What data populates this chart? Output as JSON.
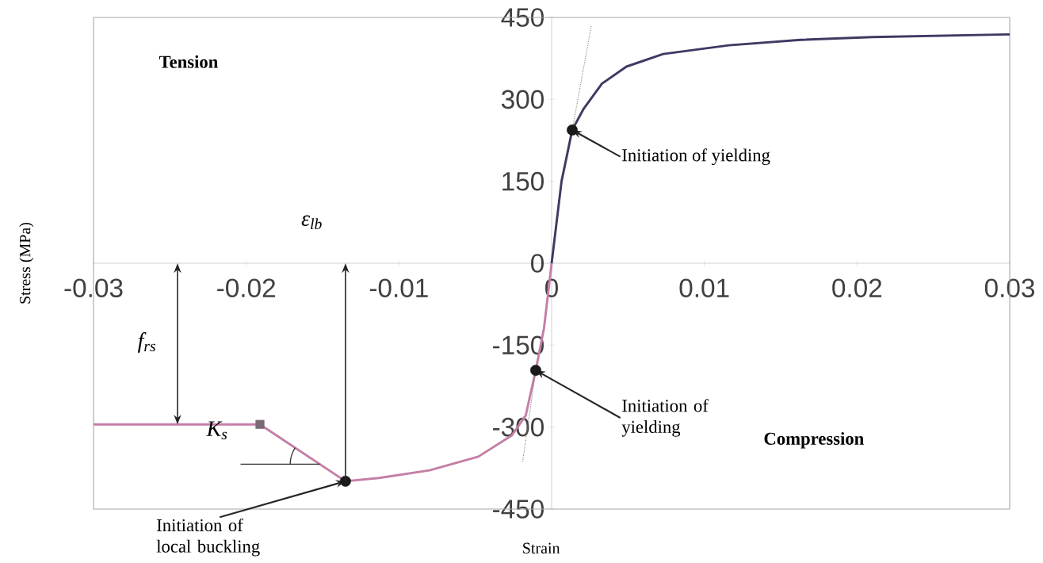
{
  "chart_data": {
    "type": "line",
    "xlabel": "Strain",
    "ylabel": "Stress (MPa)",
    "xlim": [
      -0.03,
      0.03
    ],
    "ylim": [
      -450,
      450
    ],
    "xticks": [
      -0.03,
      -0.02,
      -0.01,
      0,
      0.01,
      0.02,
      0.03
    ],
    "yticks": [
      -450,
      -300,
      -150,
      0,
      150,
      300,
      450
    ],
    "grid": false,
    "series": [
      {
        "color": "#3d3b63",
        "line_style": "solid",
        "marker": "none",
        "x": [
          0,
          0.00065,
          0.00135,
          0.0021,
          0.0033,
          0.0049,
          0.0073,
          0.0116,
          0.0163,
          0.021,
          0.03
        ],
        "values": [
          0,
          150,
          244,
          283,
          329,
          360,
          383,
          399,
          409,
          414,
          419
        ]
      },
      {
        "color": "#c47fa6",
        "line_style": "solid",
        "marker": "none",
        "x": [
          0,
          -0.0005,
          -0.00104,
          -0.0017,
          -0.0026,
          -0.0048,
          -0.008,
          -0.0113,
          -0.0135,
          -0.0191,
          -0.03
        ],
        "values": [
          0,
          -119,
          -196,
          -279,
          -315,
          -354,
          -379,
          -393,
          -399,
          -295,
          -295
        ]
      },
      {
        "type": "line",
        "color": "#808080",
        "line_style": "dotted",
        "marker": "none",
        "x": [
          0.00135,
          0.0026
        ],
        "values": [
          244,
          435
        ]
      },
      {
        "type": "line",
        "color": "#808080",
        "line_style": "dotted",
        "marker": "none",
        "x": [
          -0.00104,
          -0.0019
        ],
        "values": [
          -196,
          -364
        ]
      },
      {
        "type": "scatter",
        "color": "#1a1a1a",
        "marker": "circle",
        "x": [
          0.00135,
          -0.00104,
          -0.0135
        ],
        "values": [
          244,
          -196,
          -399
        ]
      },
      {
        "type": "scatter",
        "color": "#7a6a75",
        "marker": "square",
        "x": [
          -0.0191
        ],
        "values": [
          -295
        ]
      }
    ],
    "annotations": [
      "Tension",
      "Compression",
      {
        "text": "Initiation of yielding",
        "x": 0.00135,
        "y": 244
      },
      {
        "text": "Initiation of yielding",
        "x": -0.00104,
        "y": -196
      },
      {
        "text": "Initiation of local buckling",
        "x": -0.0135,
        "y": -399
      },
      "f$_{rs}$",
      "ε$_{lb}$",
      "K$_{s}$"
    ]
  }
}
